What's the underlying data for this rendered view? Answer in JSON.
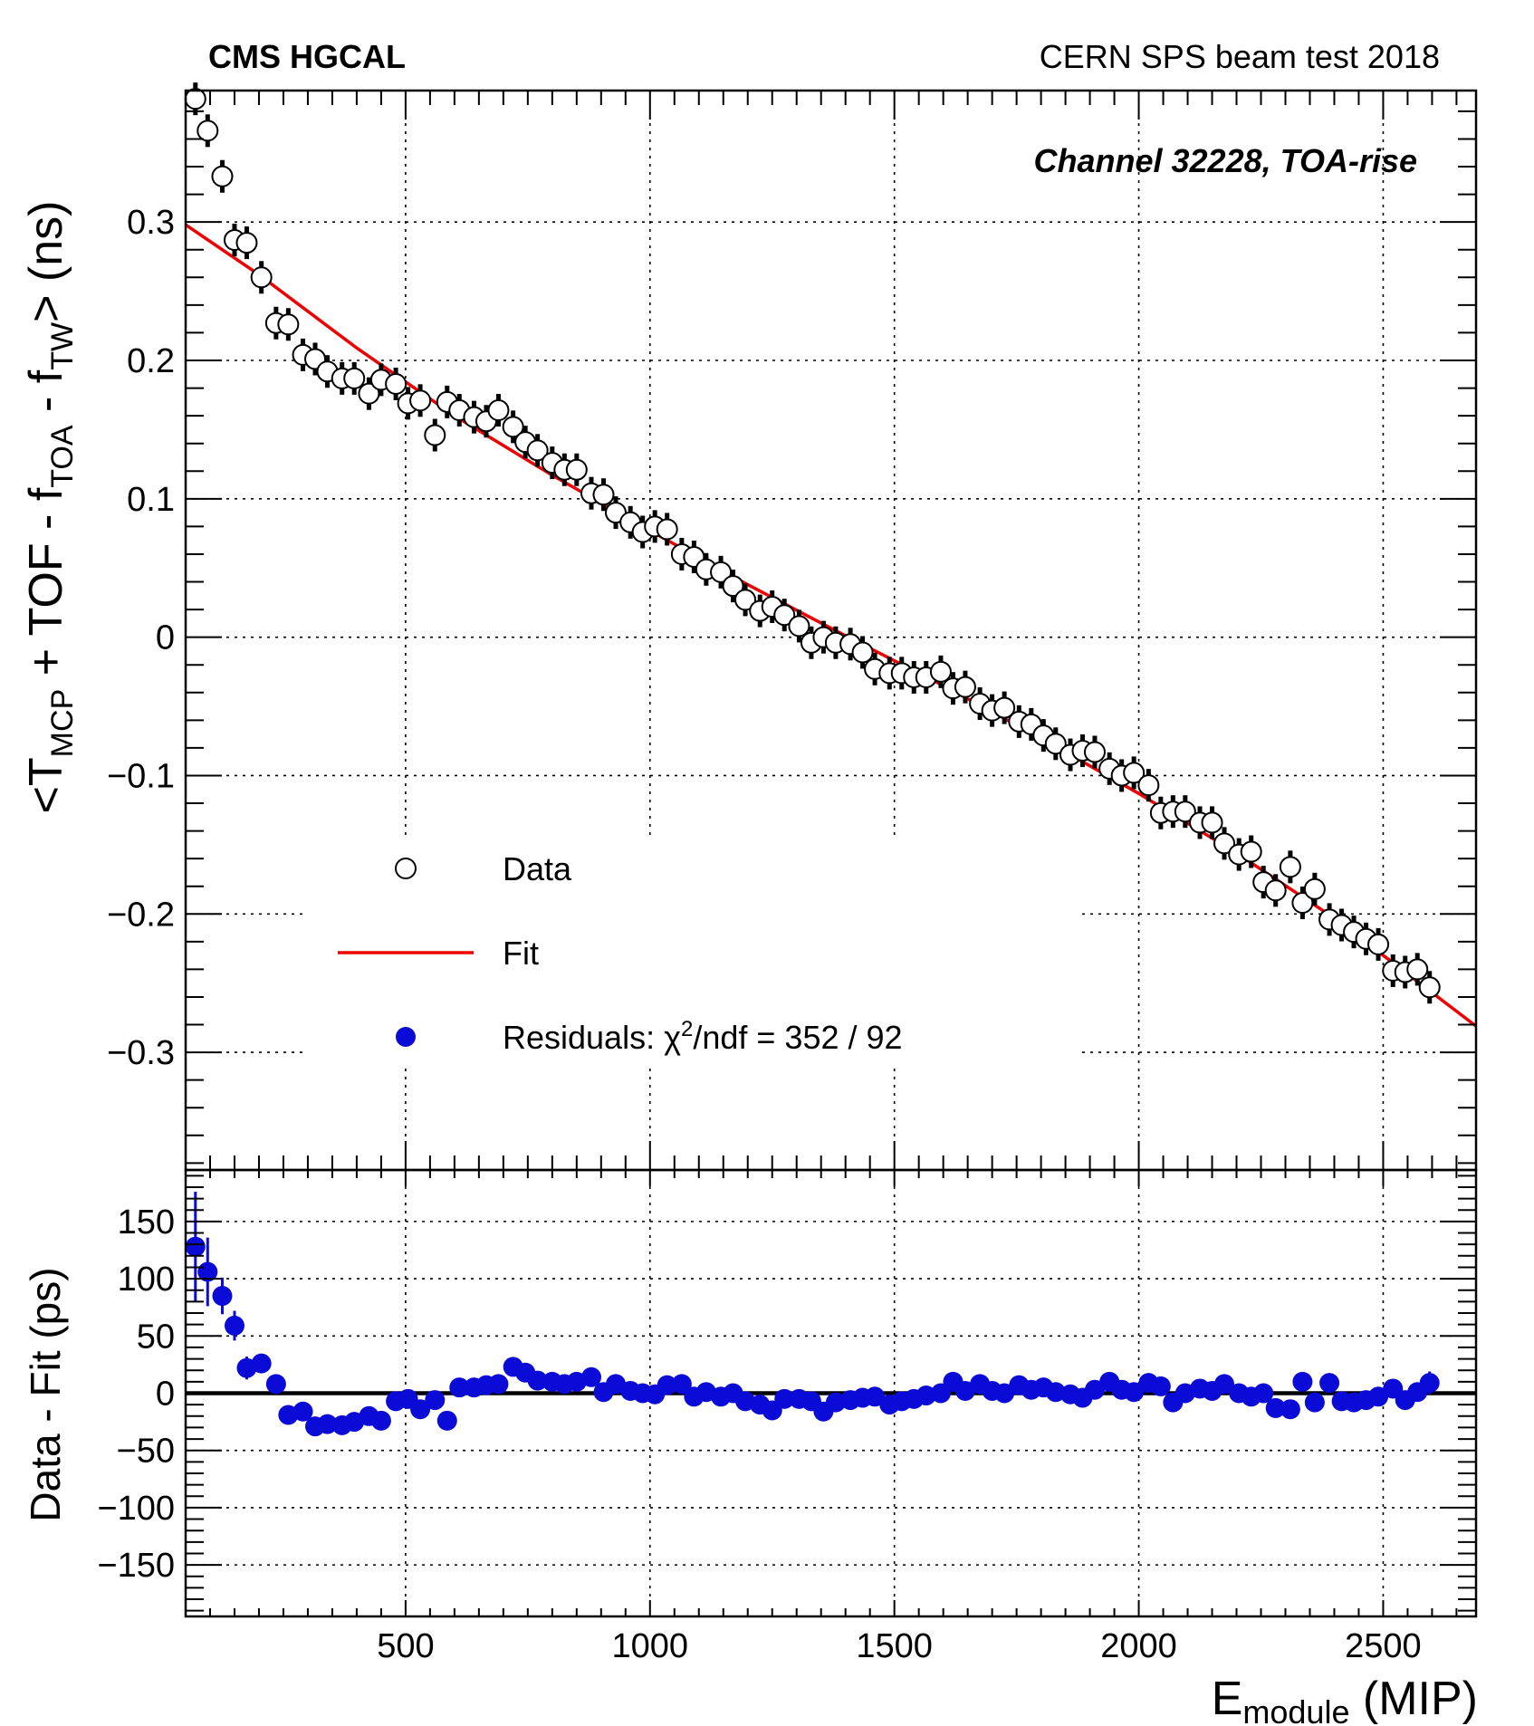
{
  "header": {
    "experiment": "CMS HGCAL",
    "test_name": "CERN SPS beam test 2018",
    "channel_label": "Channel 32228, TOA-rise"
  },
  "legend": {
    "data": "Data",
    "fit": "Fit",
    "residuals_prefix": "Residuals: ",
    "chi_symbol": "χ",
    "chi_exp": "2",
    "residuals_value": "/ndf = 352 / 92"
  },
  "colors": {
    "fit": "#ee0000",
    "residual": "#0b0bd8",
    "data": "#000000",
    "grid": "#000000"
  },
  "chart_data": [
    {
      "type": "scatter",
      "panel": "main",
      "title": "",
      "ylabel": {
        "open": "<T",
        "sub1": "MCP",
        "mid1": " + TOF - f",
        "sub2": "TOA",
        "mid2": " - f",
        "sub3": "TW",
        "close": "> (ns)"
      },
      "xlim": [
        50,
        2690
      ],
      "ylim": [
        -0.385,
        0.395
      ],
      "yticks": [
        -0.3,
        -0.2,
        -0.1,
        0,
        0.1,
        0.2,
        0.3
      ],
      "ytick_labels": [
        "−0.3",
        "−0.2",
        "−0.1",
        "0",
        "0.1",
        "0.2",
        "0.3"
      ],
      "grid": true,
      "series": [
        {
          "name": "Data",
          "marker": "open-circle",
          "x": [
            70,
            95,
            125,
            150,
            175,
            205,
            235,
            260,
            290,
            315,
            340,
            370,
            395,
            425,
            450,
            480,
            505,
            530,
            560,
            585,
            610,
            640,
            665,
            690,
            720,
            745,
            770,
            800,
            825,
            850,
            880,
            905,
            930,
            960,
            985,
            1010,
            1035,
            1065,
            1090,
            1115,
            1145,
            1170,
            1195,
            1225,
            1250,
            1275,
            1305,
            1330,
            1355,
            1380,
            1410,
            1435,
            1460,
            1490,
            1515,
            1540,
            1565,
            1595,
            1620,
            1645,
            1675,
            1700,
            1725,
            1755,
            1780,
            1805,
            1830,
            1860,
            1885,
            1910,
            1940,
            1965,
            1990,
            2020,
            2045,
            2070,
            2095,
            2125,
            2150,
            2175,
            2205,
            2230,
            2255,
            2280,
            2310,
            2335,
            2360,
            2390,
            2415,
            2440,
            2465,
            2490,
            2520,
            2545,
            2570,
            2595
          ],
          "y": [
            0.389,
            0.366,
            0.333,
            0.287,
            0.285,
            0.26,
            0.227,
            0.226,
            0.204,
            0.201,
            0.192,
            0.187,
            0.187,
            0.176,
            0.186,
            0.183,
            0.169,
            0.171,
            0.146,
            0.17,
            0.164,
            0.159,
            0.156,
            0.164,
            0.152,
            0.141,
            0.135,
            0.126,
            0.121,
            0.121,
            0.104,
            0.103,
            0.09,
            0.083,
            0.076,
            0.08,
            0.078,
            0.06,
            0.058,
            0.049,
            0.047,
            0.037,
            0.027,
            0.019,
            0.022,
            0.016,
            0.008,
            -0.004,
            0.0,
            -0.004,
            -0.005,
            -0.011,
            -0.023,
            -0.026,
            -0.026,
            -0.029,
            -0.029,
            -0.025,
            -0.037,
            -0.036,
            -0.048,
            -0.053,
            -0.051,
            -0.061,
            -0.063,
            -0.071,
            -0.077,
            -0.085,
            -0.082,
            -0.083,
            -0.095,
            -0.1,
            -0.098,
            -0.107,
            -0.127,
            -0.126,
            -0.126,
            -0.134,
            -0.134,
            -0.149,
            -0.157,
            -0.155,
            -0.177,
            -0.183,
            -0.166,
            -0.192,
            -0.182,
            -0.204,
            -0.208,
            -0.213,
            -0.218,
            -0.222,
            -0.241,
            -0.242,
            -0.24,
            -0.253
          ]
        },
        {
          "name": "Fit",
          "marker": "line",
          "x": [
            50,
            200,
            400,
            600,
            800,
            1000,
            1200,
            1400,
            1600,
            1800,
            2000,
            2200,
            2400,
            2690
          ],
          "y": [
            0.298,
            0.262,
            0.209,
            0.16,
            0.117,
            0.077,
            0.038,
            0.001,
            -0.035,
            -0.073,
            -0.113,
            -0.156,
            -0.203,
            -0.281
          ]
        }
      ]
    },
    {
      "type": "scatter",
      "panel": "residuals",
      "ylabel": "Data - Fit (ps)",
      "xlabel": {
        "base": "E",
        "sub": "module",
        "unit": " (MIP)"
      },
      "xlim": [
        50,
        2690
      ],
      "ylim": [
        -195,
        195
      ],
      "xticks": [
        500,
        1000,
        1500,
        2000,
        2500
      ],
      "xtick_labels": [
        "500",
        "1000",
        "1500",
        "2000",
        "2500"
      ],
      "yticks": [
        -150,
        -100,
        -50,
        0,
        50,
        100,
        150
      ],
      "ytick_labels": [
        "−150",
        "−100",
        "−50",
        "0",
        "50",
        "100",
        "150"
      ],
      "grid": true,
      "series": [
        {
          "name": "Residuals",
          "marker": "filled-circle",
          "x": [
            70,
            95,
            125,
            150,
            175,
            205,
            235,
            260,
            290,
            315,
            340,
            370,
            395,
            425,
            450,
            480,
            505,
            530,
            560,
            585,
            610,
            640,
            665,
            690,
            720,
            745,
            770,
            800,
            825,
            850,
            880,
            905,
            930,
            960,
            985,
            1010,
            1035,
            1065,
            1090,
            1115,
            1145,
            1170,
            1195,
            1225,
            1250,
            1275,
            1305,
            1330,
            1355,
            1380,
            1410,
            1435,
            1460,
            1490,
            1515,
            1540,
            1565,
            1595,
            1620,
            1645,
            1675,
            1700,
            1725,
            1755,
            1780,
            1805,
            1830,
            1860,
            1885,
            1910,
            1940,
            1965,
            1990,
            2020,
            2045,
            2070,
            2095,
            2125,
            2150,
            2175,
            2205,
            2230,
            2255,
            2280,
            2310,
            2335,
            2360,
            2390,
            2415,
            2440,
            2465,
            2490,
            2520,
            2545,
            2570,
            2595
          ],
          "y": [
            128,
            106,
            85,
            59,
            22,
            26,
            8,
            -19,
            -16,
            -29,
            -27,
            -28,
            -25,
            -20,
            -24,
            -7,
            -5,
            -14,
            -6,
            -24,
            5,
            5,
            7,
            8,
            23,
            18,
            11,
            10,
            8,
            10,
            14,
            1,
            8,
            2,
            0,
            -1,
            7,
            8,
            -3,
            1,
            -3,
            0,
            -7,
            -10,
            -15,
            -5,
            -5,
            -7,
            -16,
            -8,
            -6,
            -4,
            -3,
            -10,
            -7,
            -5,
            -2,
            0,
            10,
            2,
            8,
            2,
            0,
            7,
            3,
            5,
            1,
            -1,
            -4,
            3,
            10,
            3,
            1,
            9,
            6,
            -8,
            0,
            4,
            2,
            8,
            0,
            -3,
            0,
            -13,
            -14,
            10,
            -8,
            9,
            -7,
            -8,
            -6,
            -3,
            4,
            -6,
            1,
            9
          ],
          "err": [
            48,
            30,
            16,
            13,
            10,
            8,
            6,
            5,
            5,
            6,
            5,
            5,
            4,
            4,
            4,
            4,
            4,
            4,
            4,
            4,
            3,
            3,
            3,
            3,
            3,
            3,
            3,
            3,
            3,
            3,
            3,
            3,
            3,
            3,
            3,
            3,
            3,
            3,
            3,
            3,
            3,
            3,
            3,
            3,
            3,
            3,
            3,
            3,
            3,
            3,
            3,
            3,
            3,
            3,
            3,
            3,
            3,
            3,
            3,
            3,
            3,
            3,
            3,
            3,
            3,
            3,
            3,
            3,
            3,
            3,
            3,
            3,
            3,
            3,
            3,
            3,
            3,
            3,
            3,
            3,
            3,
            3,
            3,
            3,
            3,
            3,
            3,
            3,
            4,
            4,
            4,
            5,
            6,
            7,
            8,
            10
          ]
        }
      ]
    }
  ]
}
